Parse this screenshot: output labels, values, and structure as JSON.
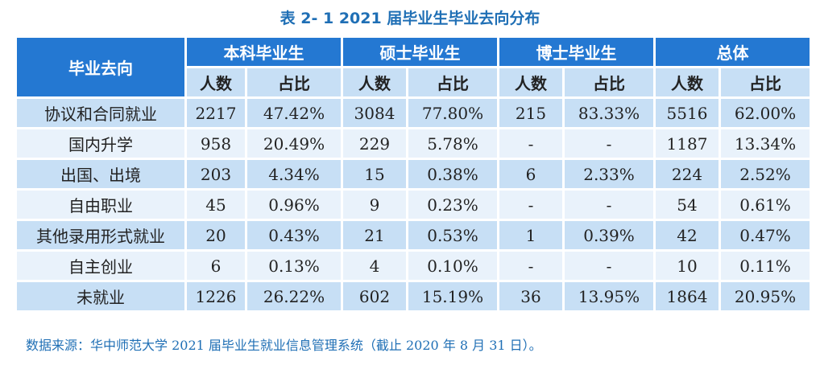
{
  "title": "表 2- 1  2021 届毕业生毕业去向分布",
  "table": {
    "row_header": "毕业去向",
    "groups": [
      "本科毕业生",
      "硕士毕业生",
      "博士毕业生",
      "总体"
    ],
    "sub_headers": [
      "人数",
      "占比"
    ],
    "rows": [
      {
        "label": "协议和合同就业",
        "cells": [
          "2217",
          "47.42%",
          "3084",
          "77.80%",
          "215",
          "83.33%",
          "5516",
          "62.00%"
        ]
      },
      {
        "label": "国内升学",
        "cells": [
          "958",
          "20.49%",
          "229",
          "5.78%",
          "-",
          "-",
          "1187",
          "13.34%"
        ]
      },
      {
        "label": "出国、出境",
        "cells": [
          "203",
          "4.34%",
          "15",
          "0.38%",
          "6",
          "2.33%",
          "224",
          "2.52%"
        ]
      },
      {
        "label": "自由职业",
        "cells": [
          "45",
          "0.96%",
          "9",
          "0.23%",
          "-",
          "-",
          "54",
          "0.61%"
        ]
      },
      {
        "label": "其他录用形式就业",
        "cells": [
          "20",
          "0.43%",
          "21",
          "0.53%",
          "1",
          "0.39%",
          "42",
          "0.47%"
        ]
      },
      {
        "label": "自主创业",
        "cells": [
          "6",
          "0.13%",
          "4",
          "0.10%",
          "-",
          "-",
          "10",
          "0.11%"
        ]
      },
      {
        "label": "未就业",
        "cells": [
          "1226",
          "26.22%",
          "602",
          "15.19%",
          "36",
          "13.95%",
          "1864",
          "20.95%"
        ]
      }
    ]
  },
  "source": "数据来源：华中师范大学 2021 届毕业生就业信息管理系统（截止 2020 年 8 月 31 日）。"
}
